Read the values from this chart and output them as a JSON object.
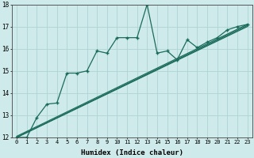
{
  "bg_color": "#ceeaea",
  "grid_color": "#aed4d4",
  "line_color": "#1a6b5a",
  "xlabel": "Humidex (Indice chaleur)",
  "xlim": [
    -0.5,
    23.5
  ],
  "ylim": [
    12,
    18
  ],
  "yticks": [
    12,
    13,
    14,
    15,
    16,
    17,
    18
  ],
  "xticks": [
    0,
    1,
    2,
    3,
    4,
    5,
    6,
    7,
    8,
    9,
    10,
    11,
    12,
    13,
    14,
    15,
    16,
    17,
    18,
    19,
    20,
    21,
    22,
    23
  ],
  "series1_x": [
    0,
    1,
    2,
    3,
    4,
    5,
    6,
    7,
    8,
    9,
    10,
    11,
    12,
    13,
    14,
    15,
    16,
    17,
    18,
    19,
    20,
    21,
    22,
    23
  ],
  "series1_y": [
    12.0,
    12.0,
    12.9,
    13.5,
    13.55,
    14.9,
    14.9,
    15.0,
    15.9,
    15.8,
    16.5,
    16.5,
    16.5,
    18.0,
    15.8,
    15.9,
    15.5,
    16.4,
    16.05,
    16.3,
    16.5,
    16.85,
    17.0,
    17.1
  ],
  "line2_x0": 0,
  "line2_y0": 12.0,
  "line2_x1": 23,
  "line2_y1": 17.0,
  "line3_x0": 0,
  "line3_y0": 12.0,
  "line3_x1": 23,
  "line3_y1": 17.05,
  "line4_x0": 0,
  "line4_y0": 12.05,
  "line4_x1": 23,
  "line4_y1": 17.1,
  "marker": "+",
  "markersize": 3.5,
  "markeredgewidth": 1.0,
  "linewidth": 0.9,
  "tick_fontsize": 5.0,
  "xlabel_fontsize": 6.5
}
